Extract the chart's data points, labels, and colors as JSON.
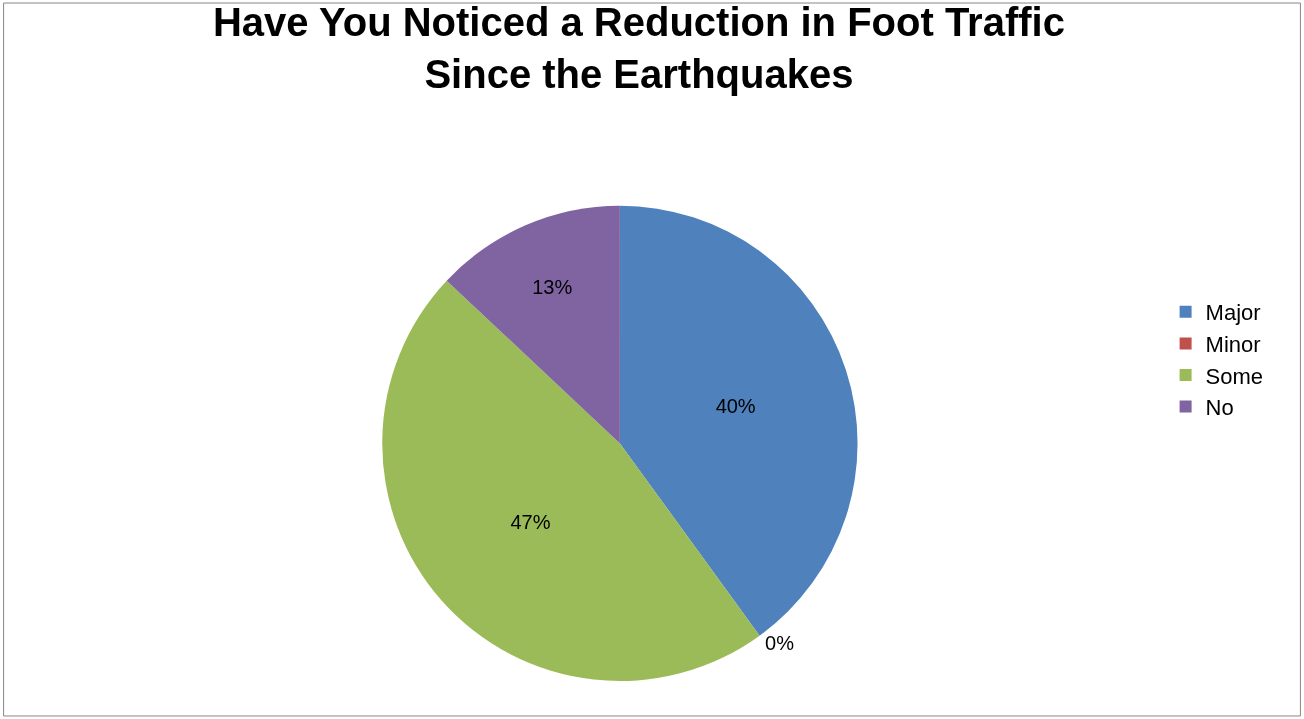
{
  "chart_data": {
    "type": "pie",
    "title": "Have You Noticed a Reduction in Foot Traffic Since the Earthquakes",
    "categories": [
      "Major",
      "Minor",
      "Some",
      "No"
    ],
    "values": [
      40,
      0,
      47,
      13
    ],
    "colors": [
      "#4f81bd",
      "#c0504d",
      "#9bbb59",
      "#8064a2"
    ],
    "value_labels": [
      "40%",
      "0%",
      "47%",
      "13%"
    ],
    "legend": "right"
  }
}
